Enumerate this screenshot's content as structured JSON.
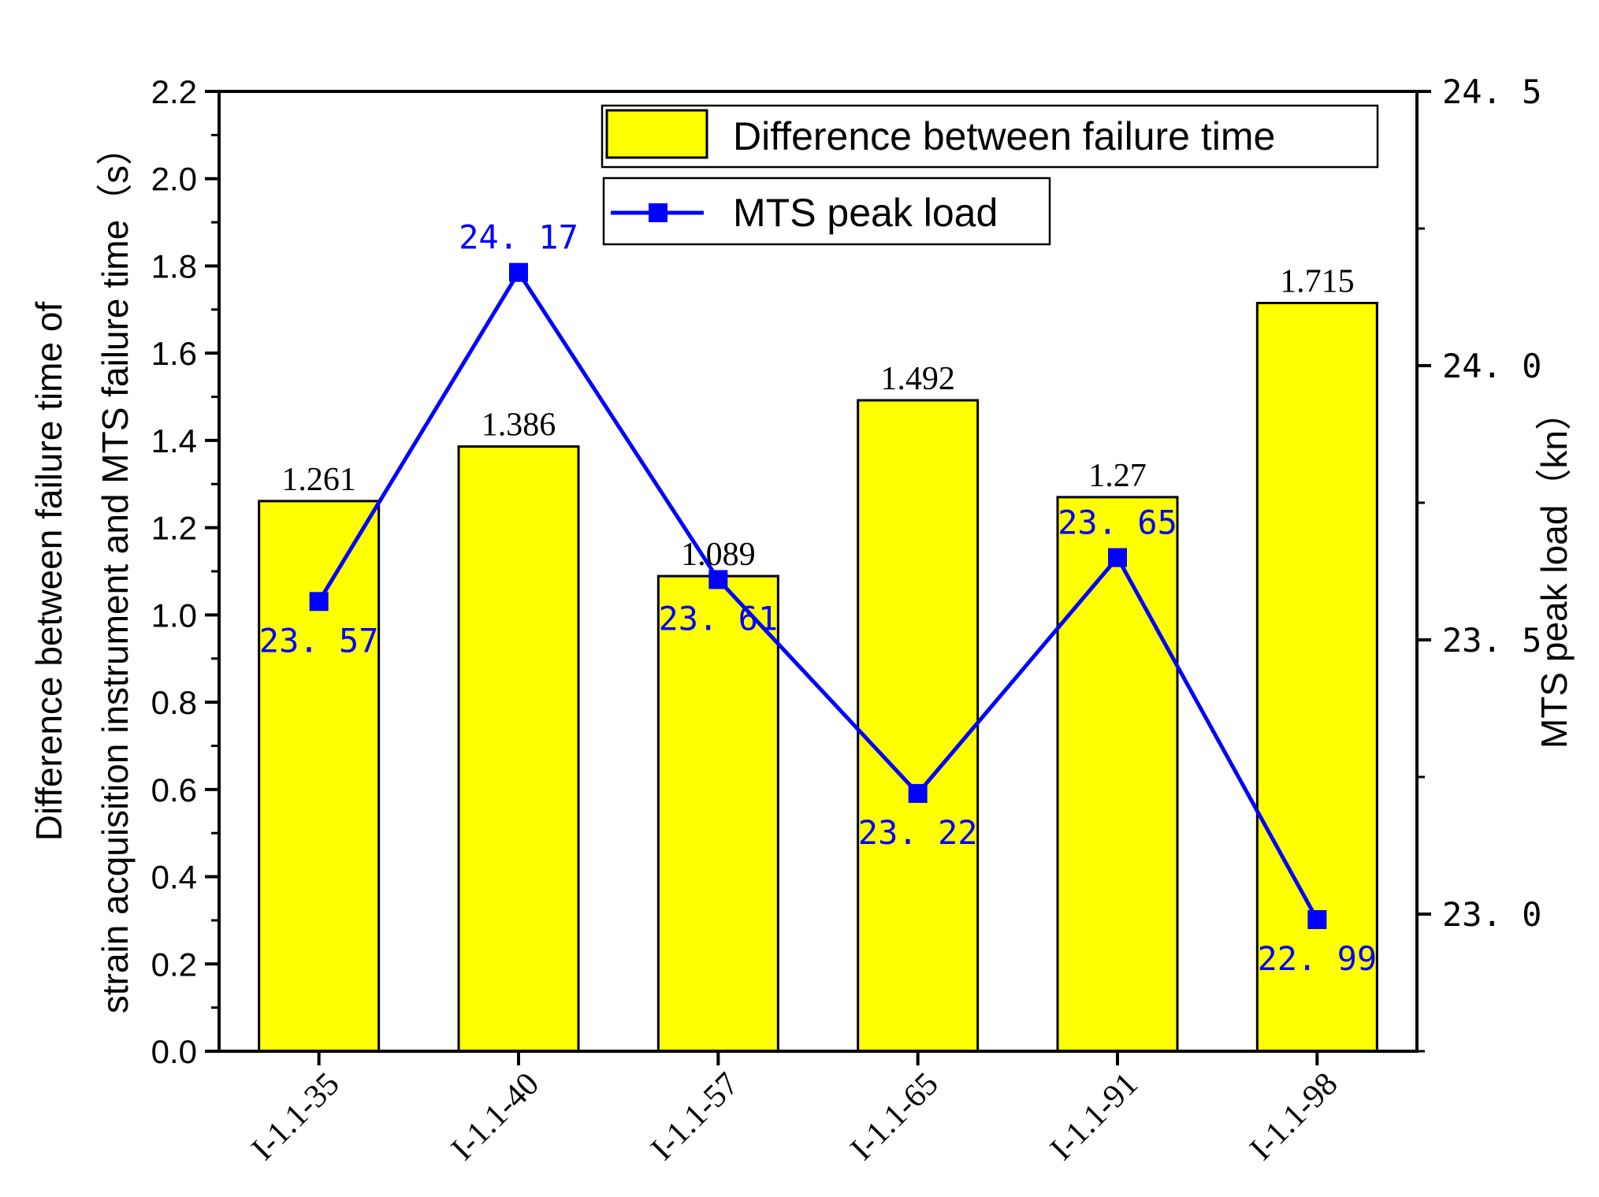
{
  "chart_data": {
    "type": "bar+line",
    "categories": [
      "I-1.1-35",
      "I-1.1-40",
      "I-1.1-57",
      "I-1.1-65",
      "I-1.1-91",
      "I-1.1-98"
    ],
    "series": [
      {
        "name": "Difference between failure time",
        "kind": "bar",
        "axis": "left",
        "color": "#ffff00",
        "values": [
          1.261,
          1.386,
          1.089,
          1.492,
          1.27,
          1.715
        ],
        "labels": [
          "1.261",
          "1.386",
          "1.089",
          "1.492",
          "1.27",
          "1.715"
        ]
      },
      {
        "name": "MTS peak load",
        "kind": "line",
        "axis": "right",
        "color": "#0000ff",
        "values": [
          23.57,
          24.17,
          23.61,
          23.22,
          23.65,
          22.99
        ],
        "labels": [
          "23. 57",
          "24. 17",
          "23. 61",
          "23. 22",
          "23. 65",
          "22. 99"
        ]
      }
    ],
    "left_axis": {
      "label_line1": "Difference between failure time of",
      "label_line2": "strain acquisition instrument and MTS failure time（s）",
      "ylim": [
        0,
        2.2
      ],
      "ticks": [
        "0.0",
        "0.2",
        "0.4",
        "0.6",
        "0.8",
        "1.0",
        "1.2",
        "1.4",
        "1.6",
        "1.8",
        "2.0",
        "2.2"
      ]
    },
    "right_axis": {
      "label": "MTS peak load（kn）",
      "ylim": [
        22.75,
        24.5
      ],
      "ticks": [
        "23. 0",
        "23. 5",
        "24. 0",
        "24. 5"
      ]
    },
    "legend": {
      "position": "top-right",
      "bar_label": "Difference between failure time",
      "line_label": "MTS peak load"
    }
  }
}
